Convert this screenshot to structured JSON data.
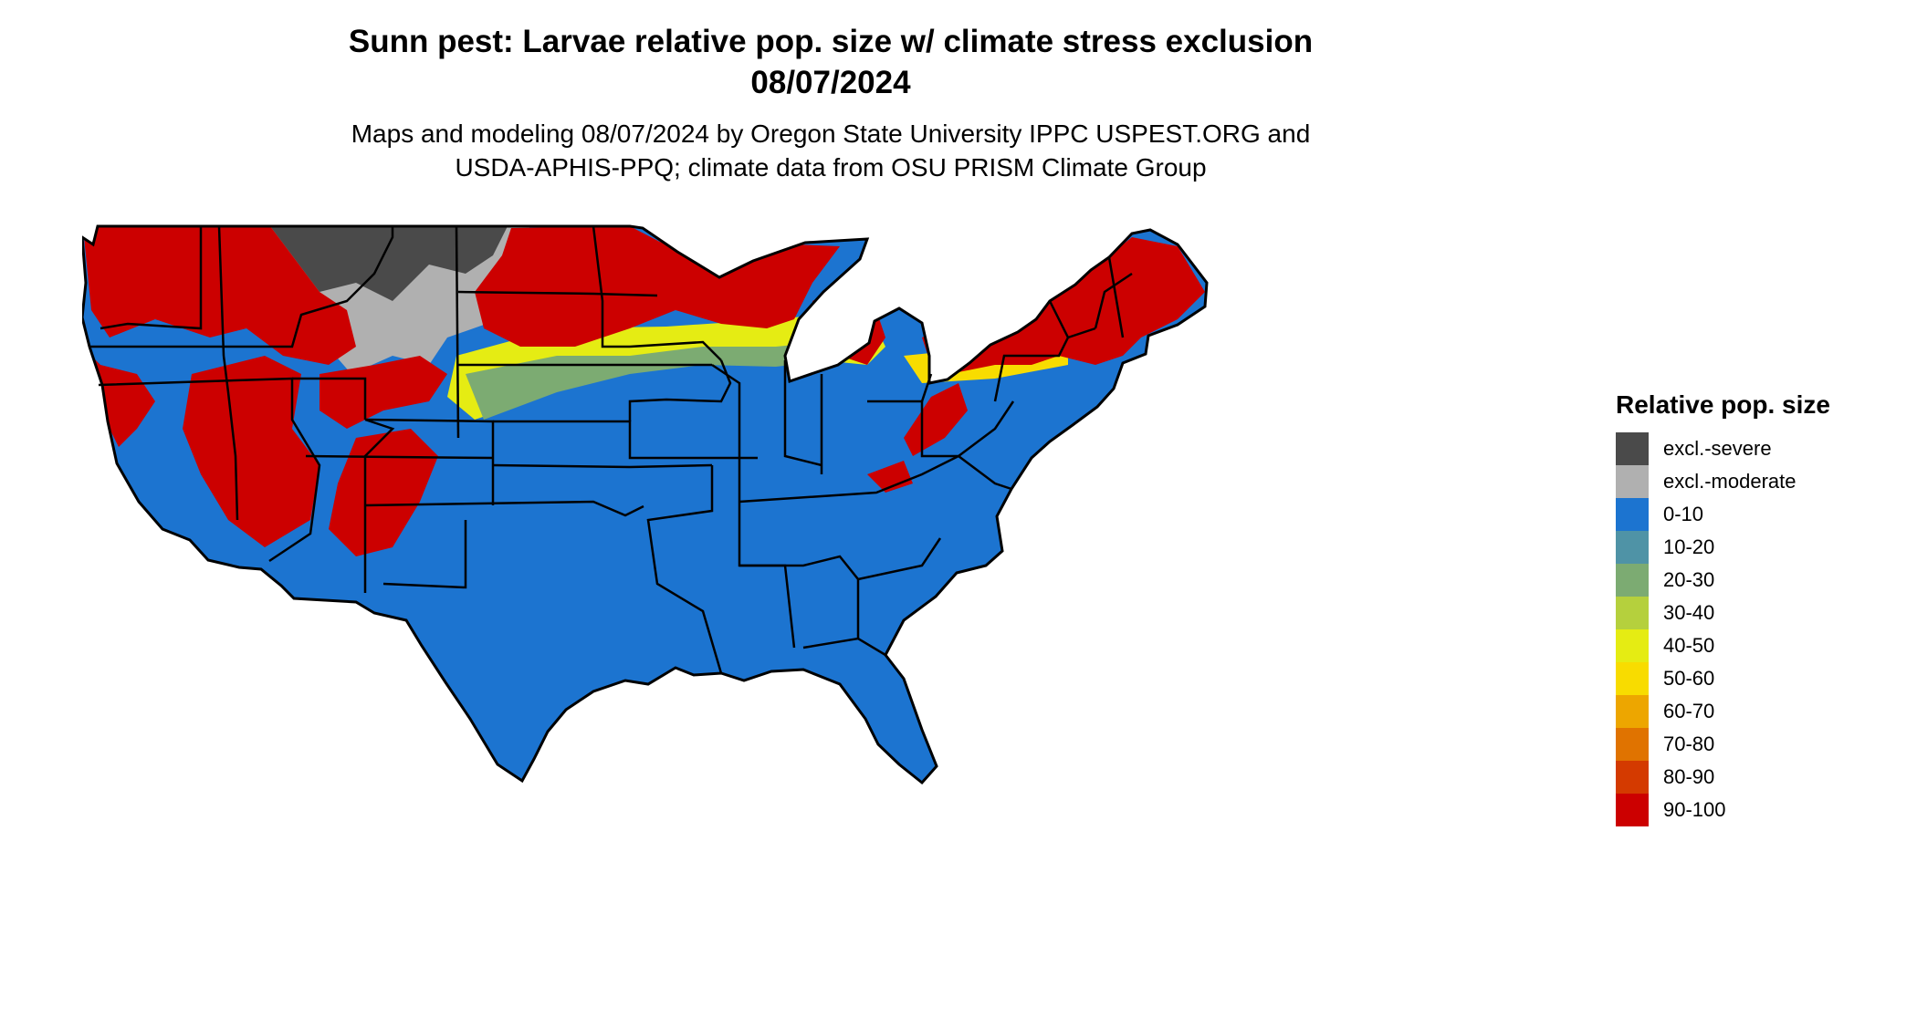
{
  "title_line1": "Sunn pest: Larvae relative pop. size w/ climate stress exclusion",
  "title_line2": "08/07/2024",
  "subtitle_line1": "Maps and modeling 08/07/2024 by Oregon State University IPPC USPEST.ORG and",
  "subtitle_line2": "USDA-APHIS-PPQ; climate data from OSU PRISM Climate Group",
  "legend": {
    "title": "Relative pop. size",
    "items": [
      {
        "label": "excl.-severe",
        "color": "#4a4a4a"
      },
      {
        "label": "excl.-moderate",
        "color": "#b0b0b0"
      },
      {
        "label": "0-10",
        "color": "#1c74d0"
      },
      {
        "label": "10-20",
        "color": "#4f93a6"
      },
      {
        "label": "20-30",
        "color": "#7cab72"
      },
      {
        "label": "30-40",
        "color": "#b5d03d"
      },
      {
        "label": "40-50",
        "color": "#e5ec13"
      },
      {
        "label": "50-60",
        "color": "#f8dc00"
      },
      {
        "label": "60-70",
        "color": "#eda600"
      },
      {
        "label": "70-80",
        "color": "#e07300"
      },
      {
        "label": "80-90",
        "color": "#d43a00"
      },
      {
        "label": "90-100",
        "color": "#cc0000"
      }
    ]
  }
}
